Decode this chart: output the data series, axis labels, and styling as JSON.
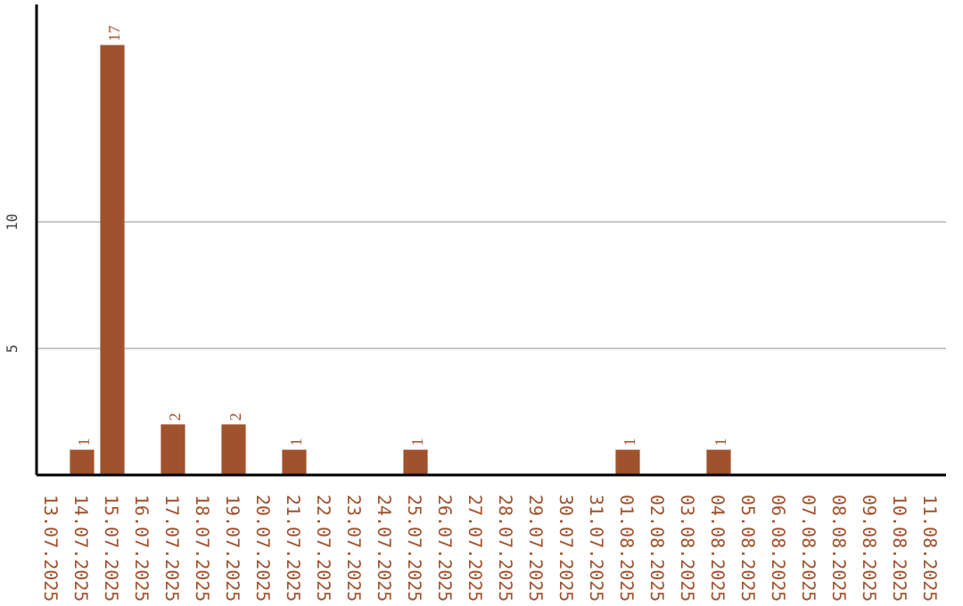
{
  "chart_data": {
    "type": "bar",
    "categories": [
      "13.07.2025",
      "14.07.2025",
      "15.07.2025",
      "16.07.2025",
      "17.07.2025",
      "18.07.2025",
      "19.07.2025",
      "20.07.2025",
      "21.07.2025",
      "22.07.2025",
      "23.07.2025",
      "24.07.2025",
      "25.07.2025",
      "26.07.2025",
      "27.07.2025",
      "28.07.2025",
      "29.07.2025",
      "30.07.2025",
      "31.07.2025",
      "01.08.2025",
      "02.08.2025",
      "03.08.2025",
      "04.08.2025",
      "05.08.2025",
      "06.08.2025",
      "07.08.2025",
      "08.08.2025",
      "09.08.2025",
      "10.08.2025",
      "11.08.2025"
    ],
    "values": [
      0,
      1,
      17,
      0,
      2,
      0,
      2,
      0,
      1,
      0,
      0,
      0,
      1,
      0,
      0,
      0,
      0,
      0,
      0,
      1,
      0,
      0,
      1,
      0,
      0,
      0,
      0,
      0,
      0,
      0
    ],
    "value_labels": [
      null,
      "1",
      "17",
      null,
      "2",
      null,
      "2",
      null,
      "1",
      null,
      null,
      null,
      "1",
      null,
      null,
      null,
      null,
      null,
      null,
      "1",
      null,
      null,
      "1",
      null,
      null,
      null,
      null,
      null,
      null,
      null
    ],
    "color": "#a0522d",
    "ylim": [
      0,
      18.6
    ],
    "yticks": [
      5,
      10
    ],
    "grid": "y"
  }
}
